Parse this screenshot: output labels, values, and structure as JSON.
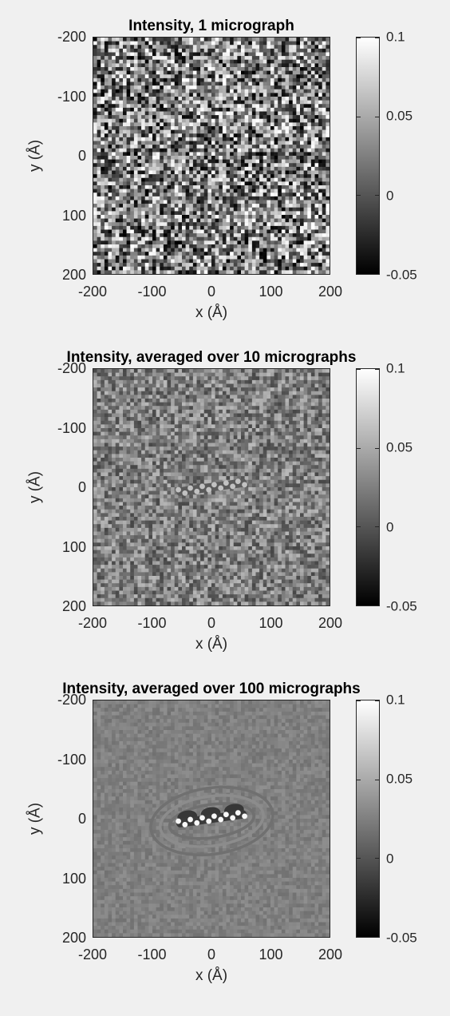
{
  "chart_data": [
    {
      "type": "heatmap",
      "title": "Intensity, 1 micrograph",
      "xlabel": "x (Å)",
      "ylabel": "y (Å)",
      "xlim": [
        -200,
        200
      ],
      "ylim": [
        -200,
        200
      ],
      "y_direction": "reversed",
      "xticks": [
        "-200",
        "-100",
        "0",
        "100",
        "200"
      ],
      "yticks": [
        "-200",
        "-100",
        "0",
        "100",
        "200"
      ],
      "colormap": "gray",
      "clim": [
        -0.05,
        0.1
      ],
      "colorbar_ticks": [
        "0.1",
        "0.05",
        "0",
        "-0.05"
      ],
      "noise_level": "high",
      "object_visibility": "not visible"
    },
    {
      "type": "heatmap",
      "title": "Intensity, averaged over 10 micrographs",
      "xlabel": "x (Å)",
      "ylabel": "y (Å)",
      "xlim": [
        -200,
        200
      ],
      "ylim": [
        -200,
        200
      ],
      "y_direction": "reversed",
      "xticks": [
        "-200",
        "-100",
        "0",
        "100",
        "200"
      ],
      "yticks": [
        "-200",
        "-100",
        "0",
        "100",
        "200"
      ],
      "colormap": "gray",
      "clim": [
        -0.05,
        0.1
      ],
      "colorbar_ticks": [
        "0.1",
        "0.05",
        "0",
        "-0.05"
      ],
      "noise_level": "medium",
      "object_visibility": "faint"
    },
    {
      "type": "heatmap",
      "title": "Intensity, averaged over 100 micrographs",
      "xlabel": "x (Å)",
      "ylabel": "y (Å)",
      "xlim": [
        -200,
        200
      ],
      "ylim": [
        -200,
        200
      ],
      "y_direction": "reversed",
      "xticks": [
        "-200",
        "-100",
        "0",
        "100",
        "200"
      ],
      "yticks": [
        "-200",
        "-100",
        "0",
        "100",
        "200"
      ],
      "colormap": "gray",
      "clim": [
        -0.05,
        0.1
      ],
      "colorbar_ticks": [
        "0.1",
        "0.05",
        "0",
        "-0.05"
      ],
      "noise_level": "low",
      "object_visibility": "clear"
    }
  ]
}
